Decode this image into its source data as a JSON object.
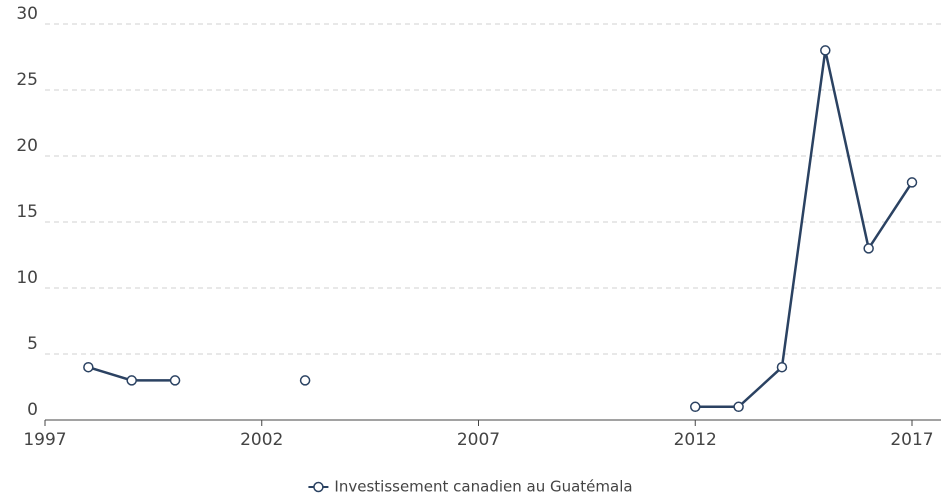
{
  "chart_data": {
    "type": "line",
    "x": [
      1998,
      1999,
      2000,
      2001,
      2002,
      2003,
      2004,
      2005,
      2006,
      2007,
      2008,
      2009,
      2010,
      2011,
      2012,
      2013,
      2014,
      2015,
      2016,
      2017
    ],
    "series": [
      {
        "name": "Investissement canadien au Guatémala",
        "color": "#2b4262",
        "values": [
          4,
          3,
          3,
          null,
          null,
          3,
          null,
          null,
          null,
          null,
          null,
          null,
          null,
          null,
          1,
          1,
          4,
          28,
          13,
          18
        ]
      }
    ],
    "xlim": [
      1997,
      2017
    ],
    "xticks": [
      1997,
      2002,
      2007,
      2012,
      2017
    ],
    "ylim": [
      0,
      30
    ],
    "yticks": [
      0,
      5,
      10,
      15,
      20,
      25,
      30
    ],
    "grid": true,
    "legend": "bottom"
  }
}
